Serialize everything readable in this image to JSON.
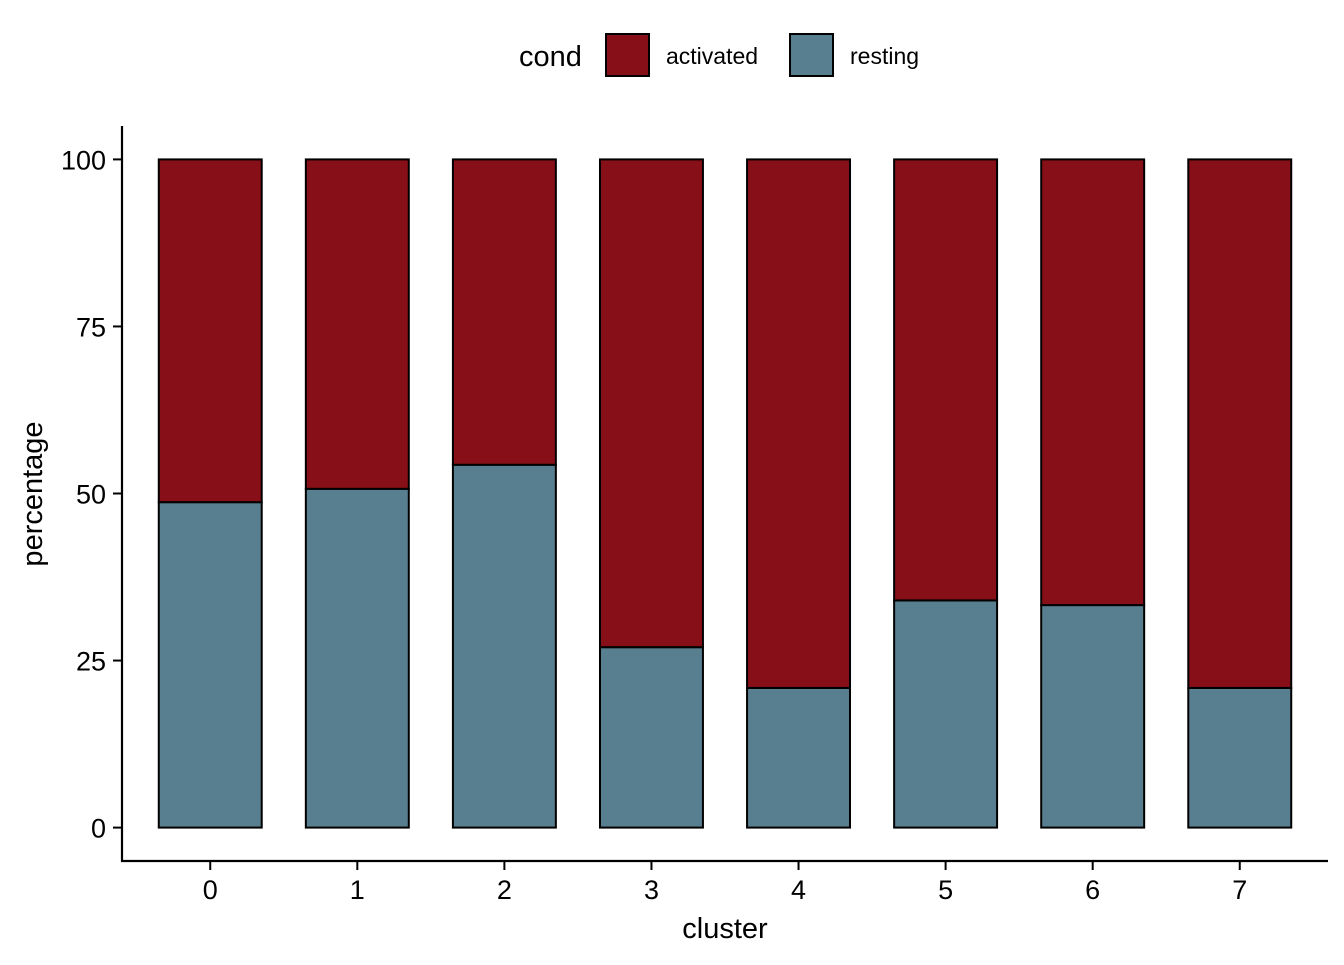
{
  "chart_data": {
    "type": "bar",
    "stacked": true,
    "title": "",
    "xlabel": "cluster",
    "ylabel": "percentage",
    "categories": [
      "0",
      "1",
      "2",
      "3",
      "4",
      "5",
      "6",
      "7"
    ],
    "series": [
      {
        "name": "resting",
        "color": "#587F8F",
        "values": [
          48.7,
          50.7,
          54.3,
          27.0,
          20.9,
          34.0,
          33.3,
          20.9
        ]
      },
      {
        "name": "activated",
        "color": "#870F17",
        "values": [
          51.3,
          49.3,
          45.7,
          73.0,
          79.1,
          66.0,
          66.7,
          79.1
        ]
      }
    ],
    "ylim": [
      -5,
      105
    ],
    "yticks": [
      0,
      25,
      50,
      75,
      100
    ],
    "grid": false,
    "legend": {
      "title": "cond",
      "position": "top",
      "entries": [
        {
          "label": "activated",
          "color": "#870F17"
        },
        {
          "label": "resting",
          "color": "#587F8F"
        }
      ]
    }
  }
}
